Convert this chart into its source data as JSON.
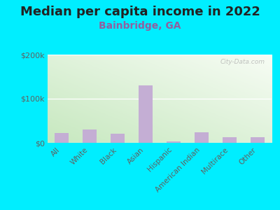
{
  "title": "Median per capita income in 2022",
  "subtitle": "Bainbridge, GA",
  "categories": [
    "All",
    "White",
    "Black",
    "Asian",
    "Hispanic",
    "American Indian",
    "Multirace",
    "Other"
  ],
  "values": [
    22000,
    30000,
    20000,
    130000,
    3000,
    24000,
    13000,
    13000
  ],
  "bar_color": "#c4aed4",
  "background_outer": "#00eeff",
  "bg_bottom_left": "#c8e8c0",
  "bg_top_right": "#f8fff8",
  "title_color": "#222222",
  "subtitle_color": "#9060a0",
  "tick_label_color": "#606060",
  "ytick_labels": [
    "$0",
    "$100k",
    "$200k"
  ],
  "ytick_values": [
    0,
    100000,
    200000
  ],
  "ylim": [
    0,
    200000
  ],
  "watermark": "City-Data.com",
  "title_fontsize": 13,
  "subtitle_fontsize": 10,
  "bar_width": 0.5
}
